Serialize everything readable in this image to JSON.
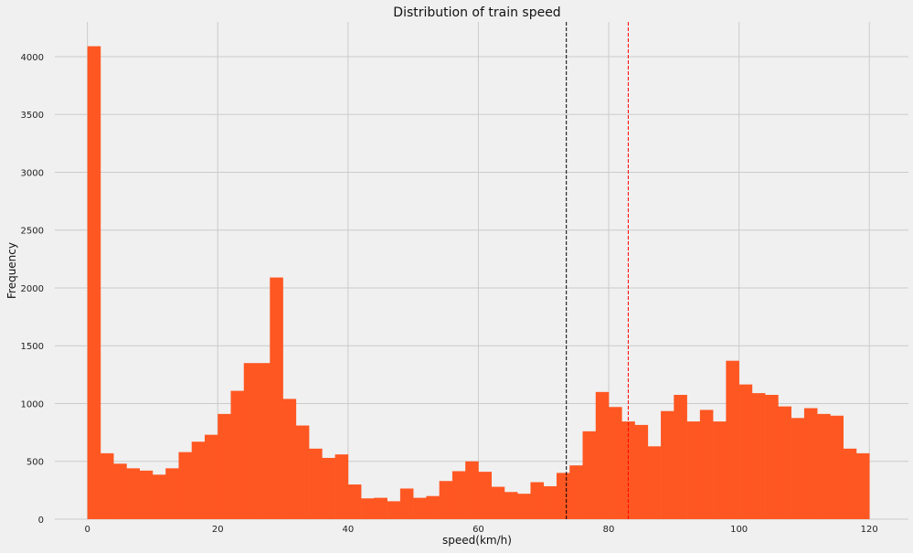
{
  "chart_data": {
    "type": "bar",
    "title": "Distribution of train speed",
    "xlabel": "speed(km/h)",
    "ylabel": "Frequency",
    "xlim": [
      -5,
      126
    ],
    "ylim": [
      0,
      4300
    ],
    "xticks": [
      0,
      20,
      40,
      60,
      80,
      100,
      120
    ],
    "yticks": [
      0,
      500,
      1000,
      1500,
      2000,
      2500,
      3000,
      3500,
      4000
    ],
    "grid": true,
    "bar_color": "#ff5722",
    "bin_width": 2,
    "bin_starts": [
      0,
      2,
      4,
      6,
      8,
      10,
      12,
      14,
      16,
      18,
      20,
      22,
      24,
      26,
      28,
      30,
      32,
      34,
      36,
      38,
      40,
      42,
      44,
      46,
      48,
      50,
      52,
      54,
      56,
      58,
      60,
      62,
      64,
      66,
      68,
      70,
      72,
      74,
      76,
      78,
      80,
      82,
      84,
      86,
      88,
      90,
      92,
      94,
      96,
      98,
      100,
      102,
      104,
      106,
      108,
      110,
      112,
      114,
      116,
      118
    ],
    "frequencies": [
      4090,
      570,
      480,
      440,
      420,
      385,
      440,
      580,
      670,
      730,
      910,
      1110,
      1350,
      1350,
      2090,
      1040,
      810,
      610,
      530,
      560,
      300,
      180,
      185,
      155,
      265,
      185,
      200,
      330,
      415,
      500,
      410,
      280,
      235,
      220,
      320,
      285,
      400,
      465,
      760,
      1100,
      970,
      845,
      815,
      630,
      935,
      1075,
      845,
      945,
      845,
      1370,
      1165,
      1090,
      1075,
      975,
      875,
      960,
      910,
      895,
      610,
      570
    ],
    "reference_lines": [
      {
        "x": 73.5,
        "color": "#000000",
        "style": "dashed"
      },
      {
        "x": 83,
        "color": "#ff0000",
        "style": "dashed"
      }
    ]
  }
}
